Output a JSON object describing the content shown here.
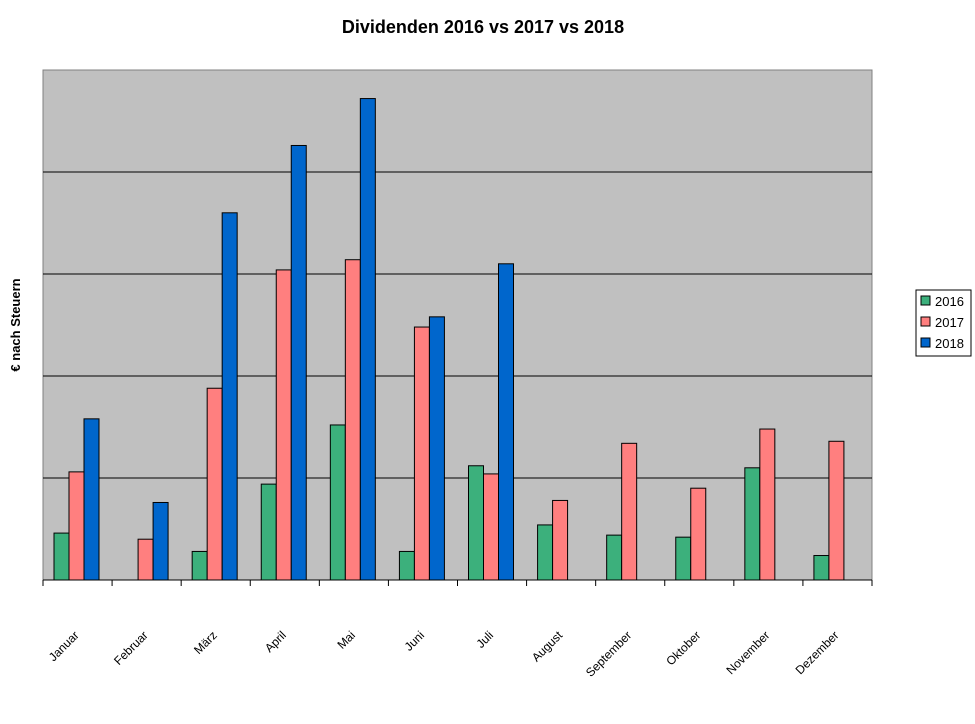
{
  "chart_data": {
    "type": "bar",
    "title": "Dividenden 2016 vs 2017 vs 2018",
    "xlabel": "",
    "ylabel": "€ nach Steuern",
    "categories": [
      "Januar",
      "Februar",
      "März",
      "April",
      "Mai",
      "Juni",
      "Juli",
      "August",
      "September",
      "Oktober",
      "November",
      "Dezember"
    ],
    "ylim": [
      0,
      250
    ],
    "y_gridlines": [
      50,
      100,
      150,
      200
    ],
    "grid": true,
    "legend_position": "right",
    "series": [
      {
        "name": "2016",
        "color": "#3cb07c",
        "values": [
          23,
          0,
          14,
          47,
          76,
          14,
          56,
          27,
          22,
          21,
          55,
          12
        ]
      },
      {
        "name": "2017",
        "color": "#ff7f7f",
        "values": [
          53,
          20,
          94,
          152,
          157,
          124,
          52,
          39,
          67,
          45,
          74,
          68
        ]
      },
      {
        "name": "2018",
        "color": "#0066cc",
        "values": [
          79,
          38,
          180,
          213,
          236,
          129,
          155,
          0,
          0,
          0,
          0,
          0
        ]
      }
    ]
  }
}
